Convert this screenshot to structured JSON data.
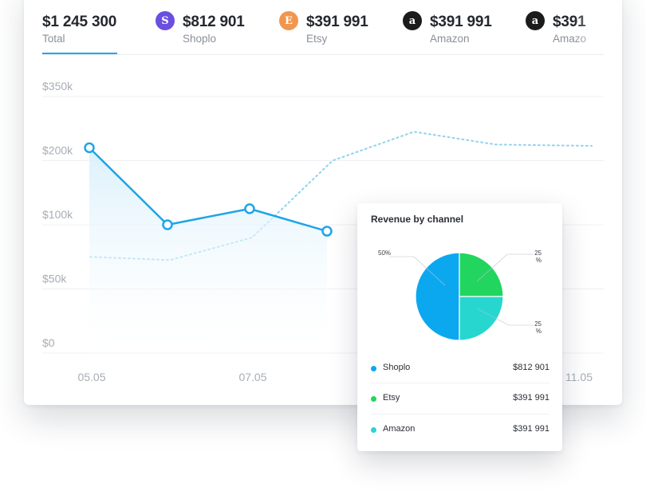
{
  "tabs": [
    {
      "amount": "$1 245 300",
      "label": "Total",
      "icon": null,
      "icon_glyph": "",
      "icon_color": ""
    },
    {
      "amount": "$812 901",
      "label": "Shoplo",
      "icon": "shoplo-icon",
      "icon_glyph": "S",
      "icon_color": "#6a4fe0"
    },
    {
      "amount": "$391 991",
      "label": "Etsy",
      "icon": "etsy-icon",
      "icon_glyph": "E",
      "icon_color": "#f1964e"
    },
    {
      "amount": "$391 991",
      "label": "Amazon",
      "icon": "amazon-icon",
      "icon_glyph": "a",
      "icon_color": "#1b1b1b"
    },
    {
      "amount": "$391",
      "label": "Amazo",
      "icon": "amazon-icon",
      "icon_glyph": "a",
      "icon_color": "#1b1b1b"
    }
  ],
  "colors": {
    "primary_line": "#1ea5e8",
    "dotted_line": "#8fd3ee",
    "accent": "#22a7e6",
    "shoplo": "#0ba8f0",
    "etsy": "#22d55f",
    "amazon": "#27d7cf"
  },
  "chart_data": {
    "type": "line",
    "yticks": [
      "$0",
      "$50k",
      "$100k",
      "$200k",
      "$350k"
    ],
    "xtick_labels": [
      "05.05",
      "07.05",
      "11.05"
    ],
    "series": [
      {
        "style": "solid",
        "points": [
          {
            "x": "05.05",
            "y": "$200k-"
          },
          {
            "x": "06.05",
            "y": "$100k-"
          },
          {
            "x": "07.05",
            "y": "$100k+"
          },
          {
            "x": "08.05",
            "y": "$100k-"
          }
        ],
        "values_level": [
          3.2,
          2.0,
          2.25,
          1.9
        ]
      },
      {
        "style": "dotted",
        "values_level": [
          1.5,
          1.45,
          1.8,
          3.0,
          3.45,
          3.25,
          3.23
        ]
      }
    ],
    "grid": true,
    "legend": "none"
  },
  "revenue_by_channel": {
    "title": "Revenue by channel",
    "chart_data": {
      "type": "pie",
      "slices": [
        {
          "name": "Shoplo",
          "value": 50,
          "label": "50%"
        },
        {
          "name": "Etsy",
          "value": 25,
          "label": "25 %"
        },
        {
          "name": "Amazon",
          "value": 25,
          "label": "25 %"
        }
      ]
    },
    "legend": [
      {
        "name": "Shoplo",
        "value": "$812 901"
      },
      {
        "name": "Etsy",
        "value": "$391 991"
      },
      {
        "name": "Amazon",
        "value": "$391 991"
      }
    ]
  }
}
